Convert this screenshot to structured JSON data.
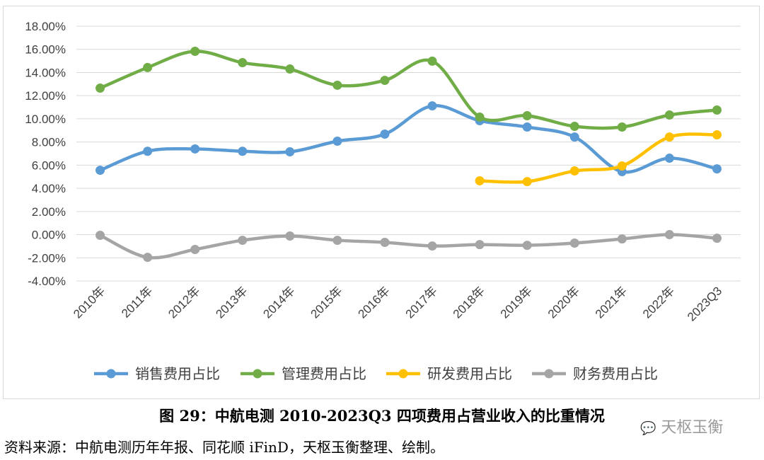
{
  "chart_data": {
    "type": "line",
    "title": "",
    "xlabel": "",
    "ylabel": "",
    "ylim": [
      -4,
      18
    ],
    "yticks": [
      "18.00%",
      "16.00%",
      "14.00%",
      "12.00%",
      "10.00%",
      "8.00%",
      "6.00%",
      "4.00%",
      "2.00%",
      "0.00%",
      "-2.00%",
      "-4.00%"
    ],
    "categories": [
      "2010年",
      "2011年",
      "2012年",
      "2013年",
      "2014年",
      "2015年",
      "2016年",
      "2017年",
      "2018年",
      "2019年",
      "2020年",
      "2021年",
      "2022年",
      "2023Q3"
    ],
    "legend_position": "bottom",
    "grid": true,
    "series": [
      {
        "name": "销售费用占比",
        "color": "#5b9bd5",
        "values": [
          5.56,
          7.2,
          7.4,
          7.2,
          7.15,
          8.07,
          8.68,
          11.12,
          9.84,
          9.29,
          8.43,
          5.44,
          6.6,
          5.68
        ]
      },
      {
        "name": "管理费用占比",
        "color": "#70ad47",
        "values": [
          12.65,
          14.43,
          15.83,
          14.85,
          14.3,
          12.9,
          13.32,
          14.98,
          10.15,
          10.27,
          9.35,
          9.29,
          10.33,
          10.76
        ]
      },
      {
        "name": "研发费用占比",
        "color": "#ffc000",
        "values": [
          null,
          null,
          null,
          null,
          null,
          null,
          null,
          null,
          4.65,
          4.58,
          5.5,
          5.93,
          8.43,
          8.62
        ]
      },
      {
        "name": "财务费用占比",
        "color": "#a5a5a5",
        "values": [
          -0.06,
          -1.96,
          -1.28,
          -0.49,
          -0.12,
          -0.49,
          -0.67,
          -0.98,
          -0.86,
          -0.92,
          -0.73,
          -0.37,
          0.0,
          -0.31
        ]
      }
    ]
  },
  "caption": "图  29：中航电测 2010-2023Q3 四项费用占营业收入的比重情况",
  "source": "资料来源：中航电测历年年报、同花顺 iFinD，天枢玉衡整理、绘制。",
  "watermark": "天枢玉衡"
}
